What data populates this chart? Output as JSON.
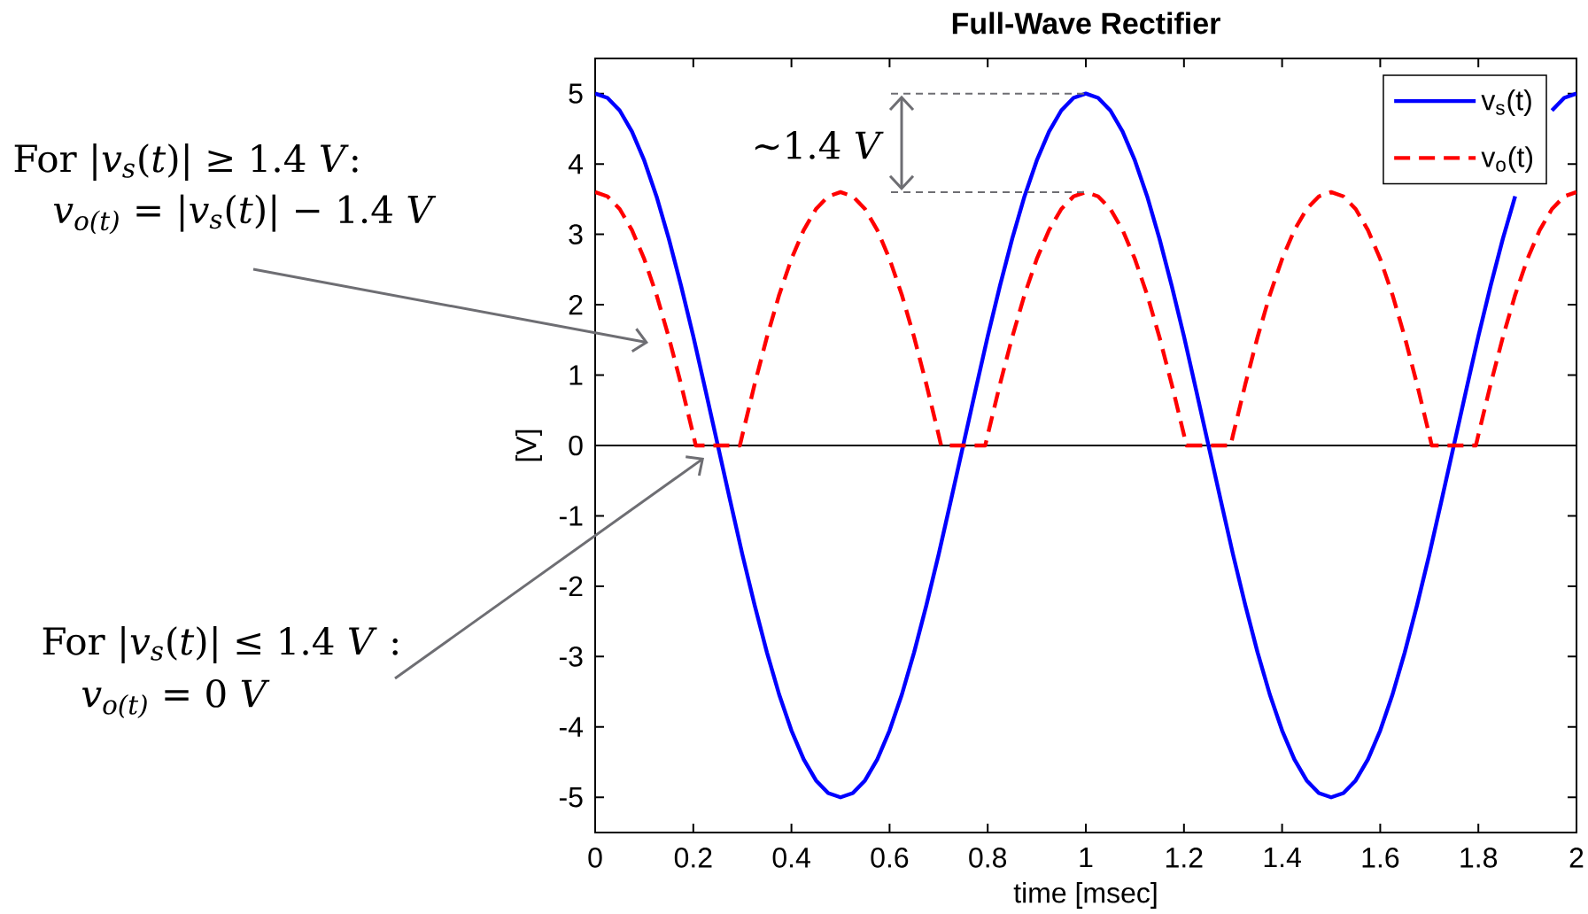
{
  "chart_data": {
    "type": "line",
    "title": "Full-Wave Rectifier",
    "xlabel": "time [msec]",
    "ylabel": "[V]",
    "xlim": [
      0,
      2
    ],
    "ylim": [
      -5.5,
      5.5
    ],
    "xticks": [
      0,
      0.2,
      0.4,
      0.6,
      0.8,
      1,
      1.2,
      1.4,
      1.6,
      1.8,
      2
    ],
    "yticks": [
      -5,
      -4,
      -3,
      -2,
      -1,
      0,
      1,
      2,
      3,
      4,
      5
    ],
    "legend": "top right",
    "ref_lines": [
      {
        "axis": "y",
        "value": 0,
        "color": "#000000"
      }
    ],
    "annotations": [
      "For |*v$_{s}$*(*t*)| ≥ 1.4 *V*:",
      "*v$_{o(t)}$* = |*v$_{s}$*(*t*)| − 1.4 *V*",
      "For |*v$_{s}$*(*t*)| ≤ 1.4 *V* :",
      "*v$_{o(t)}$* = 0 *V*",
      {
        "text": "∼1.4 *V*",
        "x": 1,
        "y": 5
      }
    ],
    "series": [
      {
        "name": "v$_{s}$(t)",
        "color": "#0000ff",
        "line_style": "solid",
        "x": [
          0,
          0.025,
          0.05,
          0.075,
          0.1,
          0.125,
          0.15,
          0.175,
          0.2,
          0.225,
          0.25,
          0.275,
          0.3,
          0.325,
          0.35,
          0.375,
          0.4,
          0.425,
          0.45,
          0.475,
          0.5,
          0.525,
          0.55,
          0.575,
          0.6,
          0.625,
          0.65,
          0.675,
          0.7,
          0.725,
          0.75,
          0.775,
          0.8,
          0.825,
          0.85,
          0.875,
          0.9,
          0.925,
          0.95,
          0.975,
          1,
          1.025,
          1.05,
          1.075,
          1.1,
          1.125,
          1.15,
          1.175,
          1.2,
          1.225,
          1.25,
          1.275,
          1.3,
          1.325,
          1.35,
          1.375,
          1.4,
          1.425,
          1.45,
          1.475,
          1.5,
          1.525,
          1.55,
          1.575,
          1.6,
          1.625,
          1.65,
          1.675,
          1.7,
          1.725,
          1.75,
          1.775,
          1.8,
          1.825,
          1.85,
          1.875,
          1.9,
          1.925,
          1.95,
          1.975,
          2
        ],
        "values": [
          5,
          4.94,
          4.76,
          4.46,
          4.05,
          3.54,
          2.94,
          2.27,
          1.55,
          0.78,
          0,
          -0.78,
          -1.55,
          -2.27,
          -2.94,
          -3.54,
          -4.05,
          -4.46,
          -4.76,
          -4.94,
          -5,
          -4.94,
          -4.76,
          -4.46,
          -4.05,
          -3.54,
          -2.94,
          -2.27,
          -1.55,
          -0.78,
          0,
          0.78,
          1.55,
          2.27,
          2.94,
          3.54,
          4.05,
          4.46,
          4.76,
          4.94,
          5,
          4.94,
          4.76,
          4.46,
          4.05,
          3.54,
          2.94,
          2.27,
          1.55,
          0.78,
          0,
          -0.78,
          -1.55,
          -2.27,
          -2.94,
          -3.54,
          -4.05,
          -4.46,
          -4.76,
          -4.94,
          -5,
          -4.94,
          -4.76,
          -4.46,
          -4.05,
          -3.54,
          -2.94,
          -2.27,
          -1.55,
          -0.78,
          0,
          0.78,
          1.55,
          2.27,
          2.94,
          3.54,
          null,
          null,
          4.76,
          4.94,
          5
        ]
      },
      {
        "name": "v$_{o}$(t)",
        "color": "#ff0000",
        "line_style": "dashed",
        "x": [
          0,
          0.025,
          0.05,
          0.075,
          0.1,
          0.125,
          0.15,
          0.175,
          0.2,
          0.205,
          0.295,
          0.3,
          0.325,
          0.35,
          0.375,
          0.4,
          0.425,
          0.45,
          0.475,
          0.5,
          0.525,
          0.55,
          0.575,
          0.6,
          0.625,
          0.65,
          0.675,
          0.7,
          0.705,
          0.795,
          0.8,
          0.825,
          0.85,
          0.875,
          0.9,
          0.925,
          0.95,
          0.975,
          1,
          1.025,
          1.05,
          1.075,
          1.1,
          1.125,
          1.15,
          1.175,
          1.2,
          1.205,
          1.295,
          1.3,
          1.325,
          1.35,
          1.375,
          1.4,
          1.425,
          1.45,
          1.475,
          1.5,
          1.525,
          1.55,
          1.575,
          1.6,
          1.625,
          1.65,
          1.675,
          1.7,
          1.705,
          1.795,
          1.8,
          1.825,
          1.85,
          1.875,
          1.9,
          1.925,
          1.95,
          1.975,
          2
        ],
        "values": [
          3.6,
          3.54,
          3.36,
          3.06,
          2.65,
          2.14,
          1.54,
          0.87,
          0.15,
          0,
          0,
          0.15,
          0.87,
          1.54,
          2.14,
          2.65,
          3.06,
          3.36,
          3.54,
          3.6,
          3.54,
          3.36,
          3.06,
          2.65,
          2.14,
          1.54,
          0.87,
          0.15,
          0,
          0,
          0.15,
          0.87,
          1.54,
          2.14,
          2.65,
          3.06,
          3.36,
          3.54,
          3.6,
          3.54,
          3.36,
          3.06,
          2.65,
          2.14,
          1.54,
          0.87,
          0.15,
          0,
          0,
          0.15,
          0.87,
          1.54,
          2.14,
          2.65,
          3.06,
          3.36,
          3.54,
          3.6,
          3.54,
          3.36,
          3.06,
          2.65,
          2.14,
          1.54,
          0.87,
          0.15,
          0,
          0,
          0.15,
          0.87,
          1.54,
          2.14,
          2.65,
          3.06,
          3.36,
          3.54,
          3.6
        ]
      }
    ]
  }
}
